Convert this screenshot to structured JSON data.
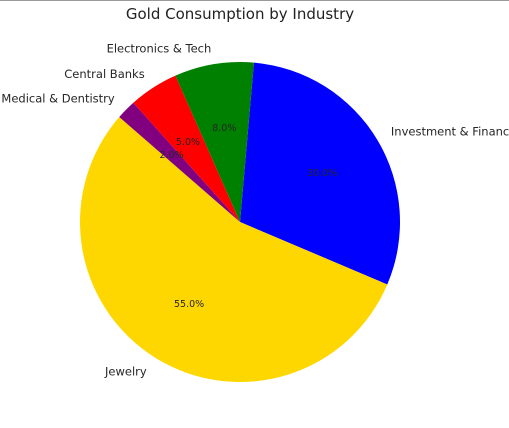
{
  "chart_data": {
    "type": "pie",
    "title": "Gold Consumption by Industry",
    "slices": [
      {
        "label": "Investment & Finance",
        "value": 30.0,
        "pct_label": "30.0%",
        "color": "#0000ff"
      },
      {
        "label": "Jewelry",
        "value": 55.0,
        "pct_label": "55.0%",
        "color": "#ffd700"
      },
      {
        "label": "Medical & Dentistry",
        "value": 2.0,
        "pct_label": "2.0%",
        "color": "#800080"
      },
      {
        "label": "Central Banks",
        "value": 5.0,
        "pct_label": "5.0%",
        "color": "#ff0000"
      },
      {
        "label": "Electronics & Tech",
        "value": 8.0,
        "pct_label": "8.0%",
        "color": "#008000"
      }
    ],
    "legend": "none"
  }
}
